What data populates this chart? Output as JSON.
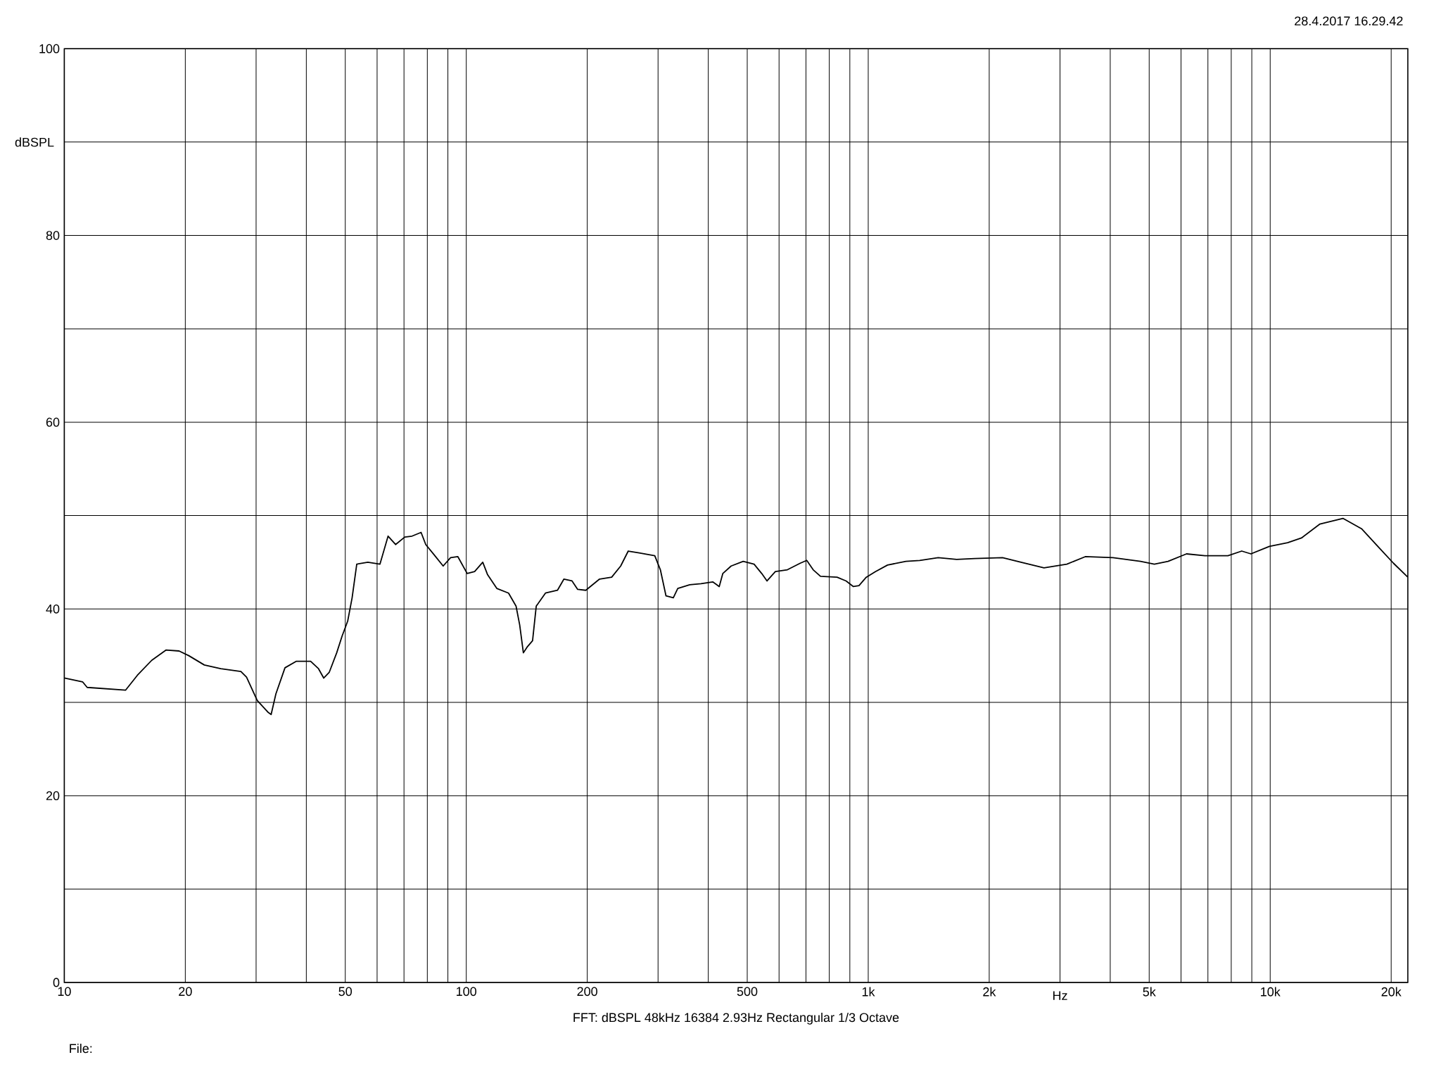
{
  "chart_data": {
    "type": "line",
    "xlabel": "Hz",
    "ylabel": "dBSPL",
    "log": "x",
    "grid": true,
    "xlim": [
      10,
      22000
    ],
    "ylim": [
      0,
      100
    ],
    "xticks": [
      10,
      20,
      {
        "value": 30,
        "label": null
      },
      {
        "value": 40,
        "label": null
      },
      50,
      {
        "value": 60,
        "label": null
      },
      {
        "value": 70,
        "label": null
      },
      {
        "value": 80,
        "label": null
      },
      {
        "value": 90,
        "label": null
      },
      100,
      200,
      {
        "value": 300,
        "label": null
      },
      {
        "value": 400,
        "label": null
      },
      500,
      {
        "value": 600,
        "label": null
      },
      {
        "value": 700,
        "label": null
      },
      {
        "value": 800,
        "label": null
      },
      {
        "value": 900,
        "label": null
      },
      {
        "value": 1000,
        "label": "1k"
      },
      {
        "value": 2000,
        "label": "2k"
      },
      {
        "value": 3000,
        "label": null
      },
      {
        "value": 4000,
        "label": null
      },
      {
        "value": 5000,
        "label": "5k"
      },
      {
        "value": 6000,
        "label": null
      },
      {
        "value": 7000,
        "label": null
      },
      {
        "value": 8000,
        "label": null
      },
      {
        "value": 9000,
        "label": null
      },
      {
        "value": 10000,
        "label": "10k"
      },
      {
        "value": 20000,
        "label": "20k"
      }
    ],
    "yticks": [
      0,
      {
        "value": 10,
        "label": null
      },
      20,
      {
        "value": 30,
        "label": null
      },
      40,
      {
        "value": 50,
        "label": null
      },
      60,
      {
        "value": 70,
        "label": null
      },
      80,
      {
        "value": 90,
        "label": null
      },
      100
    ],
    "annotations": [
      "28.4.2017 16.29.42",
      "FFT:  dBSPL  48kHz   16384  2.93Hz  Rectangular  1/3 Octave",
      "File:"
    ],
    "series": [
      {
        "color": "#000000",
        "x": [
          10,
          11.1,
          11.4,
          14.2,
          15.2,
          16.5,
          17.9,
          19.3,
          20.4,
          22.3,
          24.5,
          27.5,
          28.4,
          30.2,
          32.2,
          32.7,
          33.6,
          35.4,
          37.8,
          41.0,
          42.9,
          44.2,
          45.6,
          47.6,
          49.1,
          50.7,
          52.0,
          53.4,
          56.9,
          61.0,
          63.9,
          66.7,
          70.3,
          73.3,
          77.2,
          79.3,
          83.2,
          87.6,
          91.4,
          95.3,
          100.5,
          104.9,
          109.9,
          112.9,
          119.1,
          127.4,
          133.0,
          135.8,
          138.7,
          141.6,
          146.2,
          149.3,
          157.4,
          168.6,
          175.0,
          183.3,
          189.3,
          198.3,
          214.6,
          230.0,
          242.2,
          252.9,
          269.2,
          294.4,
          304.0,
          314.0,
          327.4,
          335.9,
          359.7,
          383.7,
          410.4,
          425.9,
          434.8,
          456.0,
          488.6,
          520.0,
          543.2,
          560.0,
          587.5,
          629.5,
          677.5,
          703.1,
          729.5,
          760.8,
          836.4,
          881.0,
          918.4,
          948.4,
          988.9,
          1042,
          1117,
          1241,
          1343,
          1493,
          1660,
          1841,
          2158,
          2399,
          2737,
          3120,
          3467,
          4063,
          4757,
          5150,
          5571,
          6192,
          6880,
          7852,
          8496,
          8955,
          9953,
          11050,
          11960,
          13300,
          15170,
          16870,
          18720,
          20260,
          22000
        ],
        "values": [
          32.6,
          32.2,
          31.6,
          31.3,
          32.9,
          34.5,
          35.6,
          35.5,
          35.0,
          34.0,
          33.6,
          33.3,
          32.7,
          30.2,
          28.9,
          28.7,
          30.9,
          33.7,
          34.4,
          34.4,
          33.6,
          32.6,
          33.2,
          35.3,
          37.1,
          38.7,
          41.2,
          44.8,
          45.0,
          44.8,
          47.8,
          46.9,
          47.7,
          47.8,
          48.2,
          46.9,
          45.8,
          44.6,
          45.5,
          45.6,
          43.8,
          44.0,
          45.0,
          43.7,
          42.2,
          41.7,
          40.3,
          38.3,
          35.3,
          35.9,
          36.6,
          40.3,
          41.7,
          42.0,
          43.2,
          43.0,
          42.1,
          42.0,
          43.2,
          43.4,
          44.6,
          46.2,
          46.0,
          45.7,
          44.2,
          41.4,
          41.2,
          42.2,
          42.6,
          42.7,
          42.9,
          42.4,
          43.8,
          44.6,
          45.1,
          44.8,
          43.8,
          43.0,
          44.0,
          44.2,
          44.9,
          45.2,
          44.2,
          43.5,
          43.4,
          43.0,
          42.4,
          42.5,
          43.4,
          44.0,
          44.7,
          45.1,
          45.2,
          45.5,
          45.3,
          45.4,
          45.5,
          45.0,
          44.4,
          44.8,
          45.6,
          45.5,
          45.1,
          44.8,
          45.1,
          45.9,
          45.7,
          45.7,
          46.2,
          45.9,
          46.7,
          47.1,
          47.6,
          49.1,
          49.7,
          48.6,
          46.5,
          44.9,
          43.4
        ]
      }
    ]
  }
}
